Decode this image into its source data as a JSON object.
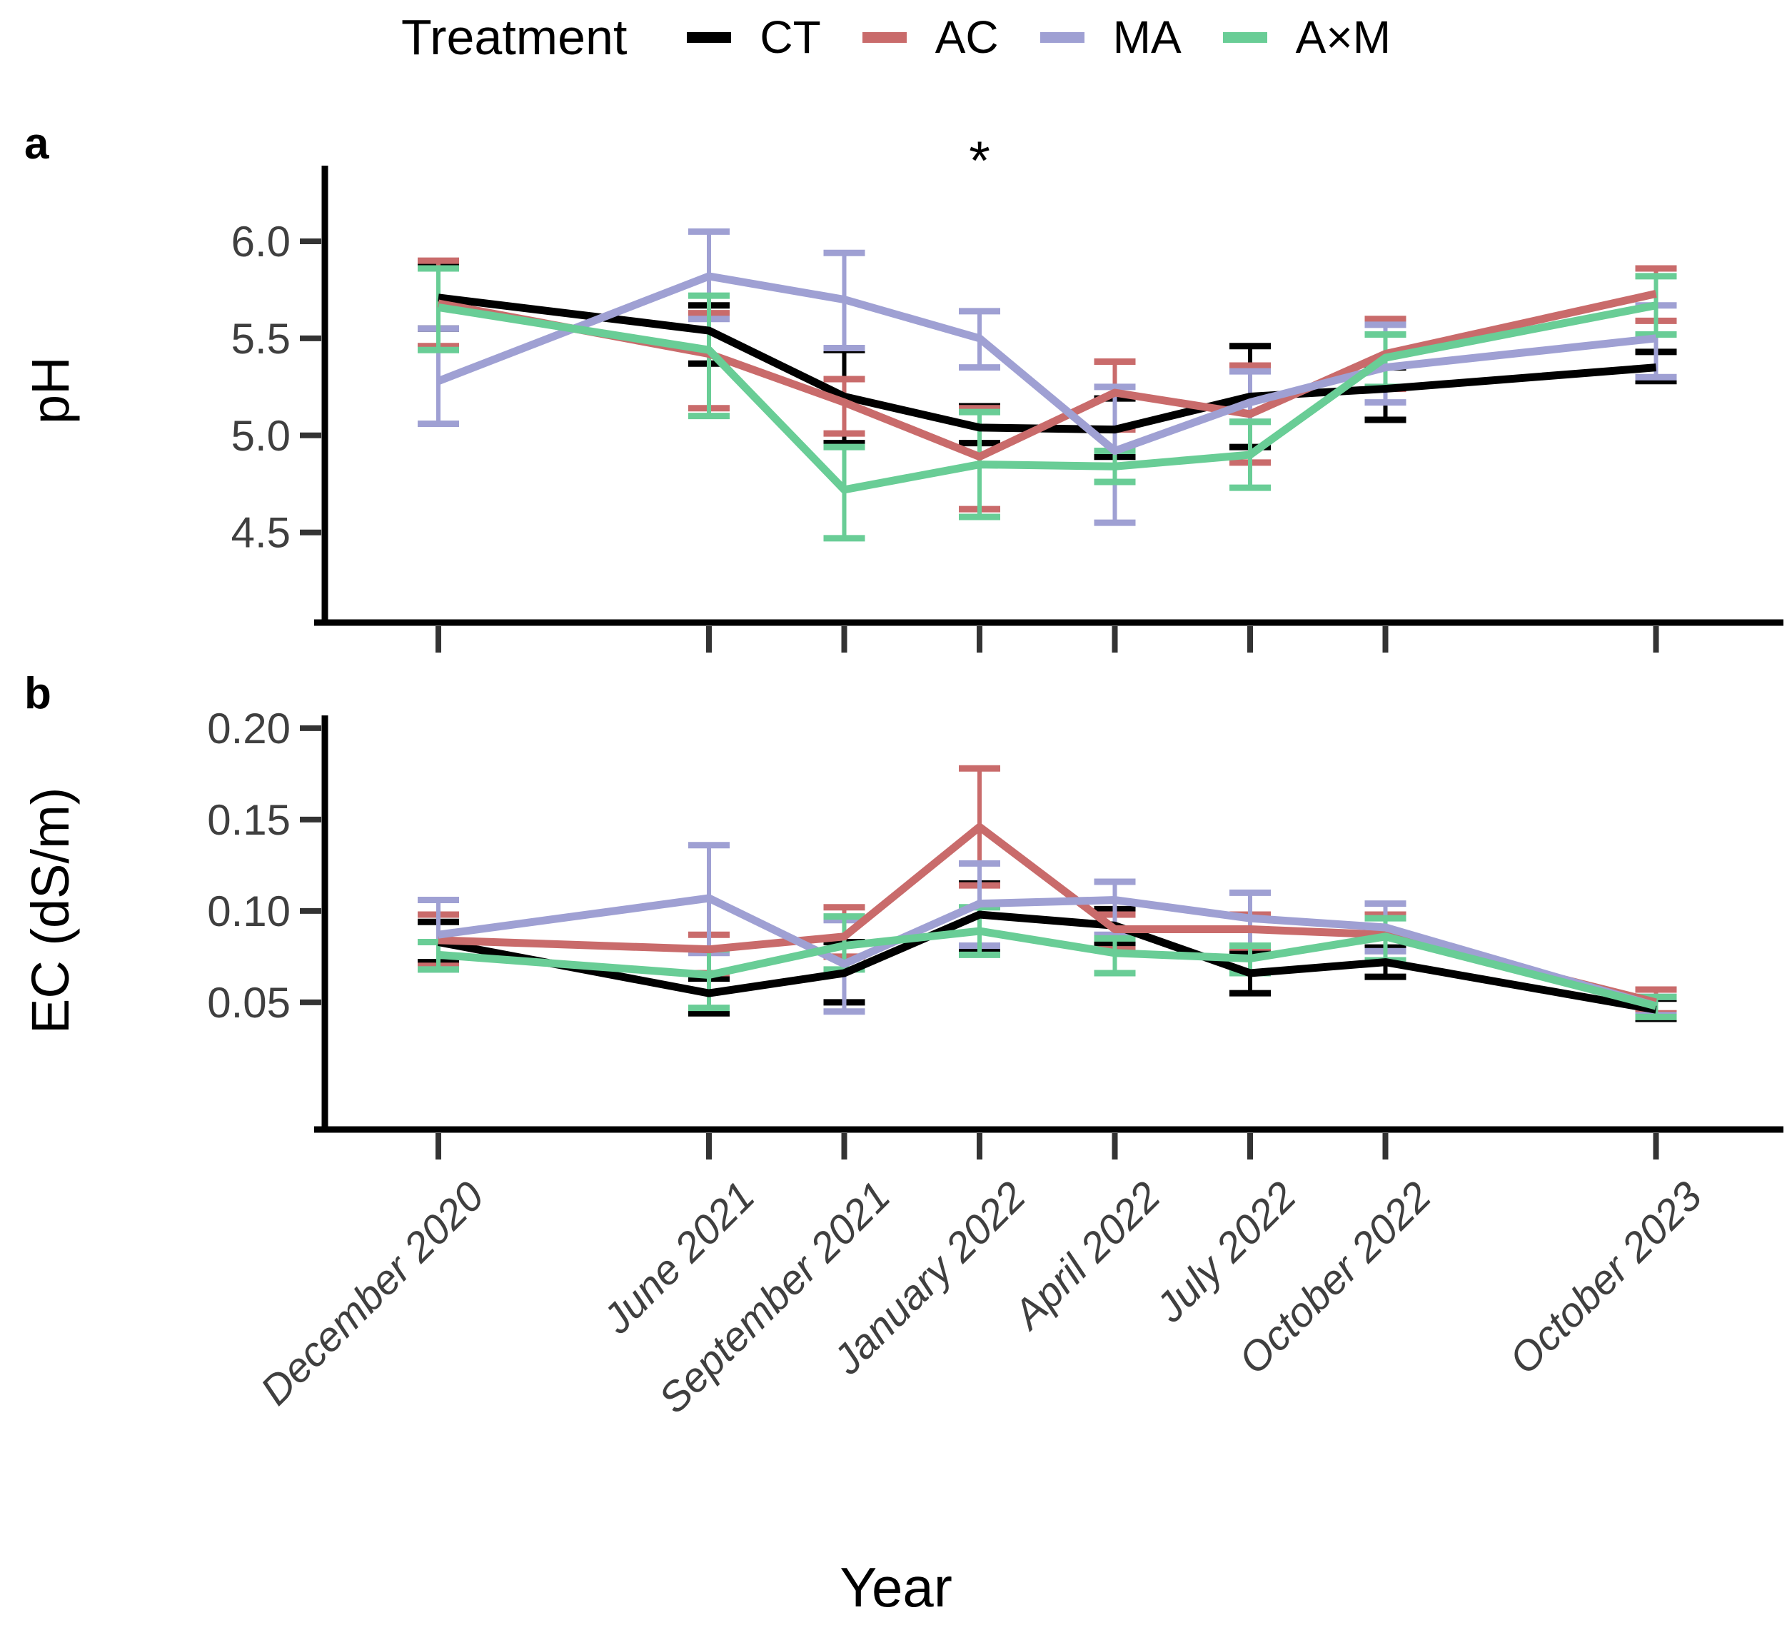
{
  "legend": {
    "title": "Treatment",
    "items": [
      {
        "label": "CT",
        "color": "#000000"
      },
      {
        "label": "AC",
        "color": "#C96B6B"
      },
      {
        "label": "MA",
        "color": "#9FA0D3"
      },
      {
        "label": "A×M",
        "color": "#69CD96"
      }
    ]
  },
  "xlabel": "Year",
  "categories": [
    "December 2020",
    "June 2021",
    "September 2021",
    "January 2022",
    "April 2022",
    "July 2022",
    "October 2022",
    "October 2023"
  ],
  "x_units": [
    0,
    2,
    3,
    4,
    5,
    6,
    7,
    9
  ],
  "chart_data": [
    {
      "type": "line",
      "panel": "a",
      "ylabel": "pH",
      "ylim": [
        4.05,
        6.39
      ],
      "grid": "off",
      "legend_position": "top",
      "yticks": [
        {
          "label": "6.0",
          "value": 6.0
        },
        {
          "label": "5.5",
          "value": 5.5
        },
        {
          "label": "5.0",
          "value": 5.0
        },
        {
          "label": "4.5",
          "value": 4.5
        }
      ],
      "series": [
        {
          "name": "CT",
          "color": "#000000",
          "means": [
            5.71,
            5.54,
            5.2,
            5.04,
            5.03,
            5.2,
            5.24,
            5.35
          ],
          "lo": [
            5.55,
            5.37,
            4.96,
            4.96,
            4.89,
            4.94,
            5.08,
            5.28
          ],
          "hi": [
            5.89,
            5.67,
            5.44,
            5.15,
            5.19,
            5.46,
            5.35,
            5.43
          ]
        },
        {
          "name": "AC",
          "color": "#C96B6B",
          "means": [
            5.68,
            5.42,
            5.17,
            4.89,
            5.22,
            5.11,
            5.42,
            5.73
          ],
          "lo": [
            5.46,
            5.14,
            5.01,
            4.62,
            5.03,
            4.86,
            5.24,
            5.59
          ],
          "hi": [
            5.9,
            5.63,
            5.29,
            5.14,
            5.38,
            5.36,
            5.6,
            5.86
          ]
        },
        {
          "name": "MA",
          "color": "#9FA0D3",
          "means": [
            5.28,
            5.82,
            5.7,
            5.5,
            4.92,
            5.17,
            5.35,
            5.5
          ],
          "lo": [
            5.06,
            5.6,
            5.45,
            5.35,
            4.55,
            5.07,
            5.17,
            5.3
          ],
          "hi": [
            5.55,
            6.05,
            5.94,
            5.64,
            5.25,
            5.33,
            5.57,
            5.67
          ]
        },
        {
          "name": "A×M",
          "color": "#69CD96",
          "means": [
            5.66,
            5.44,
            4.72,
            4.85,
            4.84,
            4.9,
            5.4,
            5.67
          ],
          "lo": [
            5.44,
            5.1,
            4.47,
            4.58,
            4.76,
            4.73,
            5.25,
            5.52
          ],
          "hi": [
            5.86,
            5.72,
            4.94,
            5.12,
            4.92,
            5.07,
            5.52,
            5.82
          ]
        }
      ],
      "annotation": {
        "text": "*",
        "x_unit": 4,
        "y": 6.32
      }
    },
    {
      "type": "line",
      "panel": "b",
      "ylabel": "EC (dS/m)",
      "ylim": [
        -0.018,
        0.207
      ],
      "grid": "off",
      "yticks": [
        {
          "label": "0.20",
          "value": 0.2
        },
        {
          "label": "0.15",
          "value": 0.15
        },
        {
          "label": "0.10",
          "value": 0.1
        },
        {
          "label": "0.05",
          "value": 0.05
        }
      ],
      "series": [
        {
          "name": "CT",
          "color": "#000000",
          "means": [
            0.083,
            0.055,
            0.066,
            0.098,
            0.092,
            0.066,
            0.072,
            0.046
          ],
          "lo": [
            0.072,
            0.044,
            0.05,
            0.079,
            0.082,
            0.055,
            0.064,
            0.041
          ],
          "hi": [
            0.094,
            0.063,
            0.083,
            0.115,
            0.101,
            0.077,
            0.08,
            0.052
          ]
        },
        {
          "name": "AC",
          "color": "#C96B6B",
          "means": [
            0.084,
            0.079,
            0.086,
            0.146,
            0.09,
            0.09,
            0.087,
            0.05
          ],
          "lo": [
            0.07,
            0.066,
            0.075,
            0.114,
            0.079,
            0.08,
            0.073,
            0.044
          ],
          "hi": [
            0.098,
            0.087,
            0.102,
            0.178,
            0.098,
            0.098,
            0.098,
            0.057
          ]
        },
        {
          "name": "MA",
          "color": "#9FA0D3",
          "means": [
            0.087,
            0.107,
            0.071,
            0.104,
            0.106,
            0.096,
            0.091,
            0.048
          ],
          "lo": [
            0.068,
            0.077,
            0.045,
            0.081,
            0.087,
            0.081,
            0.078,
            0.043
          ],
          "hi": [
            0.106,
            0.136,
            0.095,
            0.126,
            0.116,
            0.11,
            0.104,
            0.053
          ]
        },
        {
          "name": "A×M",
          "color": "#69CD96",
          "means": [
            0.076,
            0.065,
            0.081,
            0.089,
            0.077,
            0.074,
            0.086,
            0.048
          ],
          "lo": [
            0.068,
            0.047,
            0.068,
            0.076,
            0.066,
            0.066,
            0.073,
            0.042
          ],
          "hi": [
            0.083,
            0.079,
            0.097,
            0.102,
            0.085,
            0.081,
            0.096,
            0.053
          ]
        }
      ]
    }
  ]
}
